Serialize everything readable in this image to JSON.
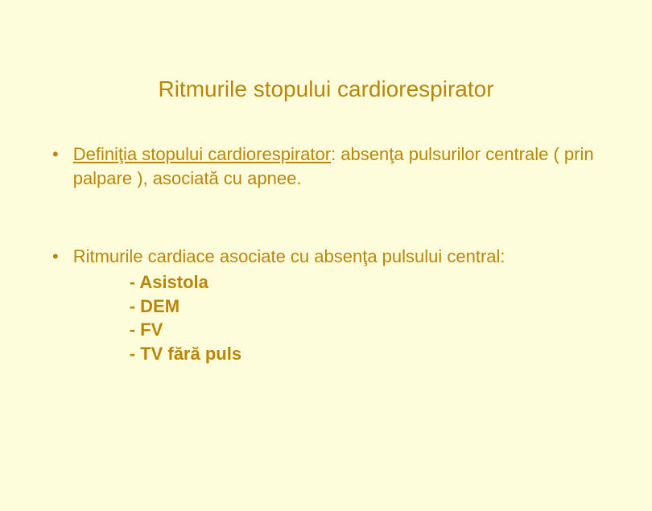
{
  "slide": {
    "background_color": "#fdfddc",
    "text_color": "#b8860b",
    "title": "Ritmurile stopului cardiorespirator",
    "title_fontsize": 28,
    "body_fontsize": 22,
    "bullets": [
      {
        "marker": "•",
        "underlined_lead": "Definiţia stopului cardiorespirator",
        "rest": ": absenţa pulsurilor centrale ( prin palpare ), asociată cu apnee.",
        "sub_items": []
      },
      {
        "marker": "•",
        "underlined_lead": "",
        "rest": "Ritmurile cardiace asociate cu absenţa pulsului central:",
        "sub_items": [
          "- Asistola",
          "- DEM",
          "- FV",
          "- TV fără puls"
        ]
      }
    ]
  }
}
